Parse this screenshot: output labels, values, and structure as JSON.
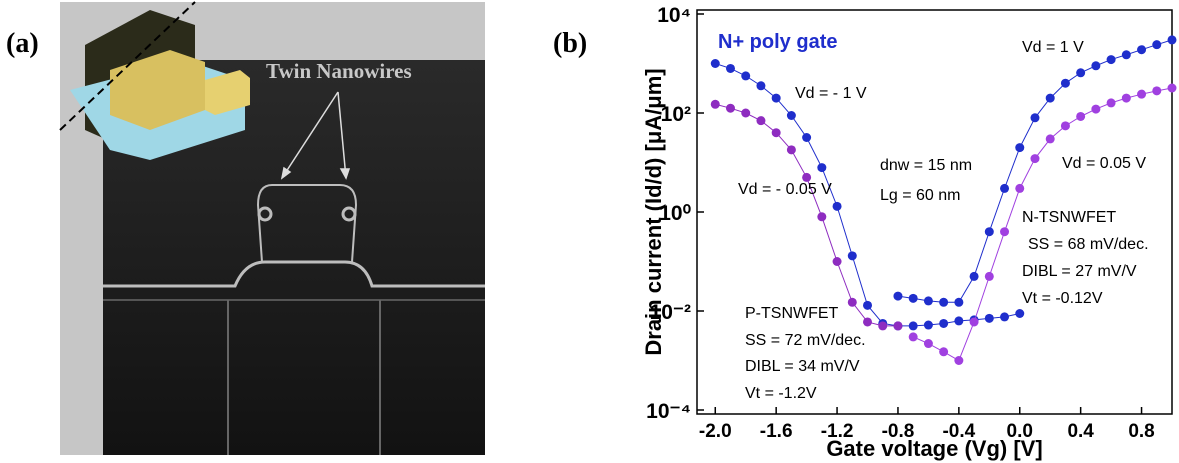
{
  "figure": {
    "panel_a_label": "(a)",
    "panel_b_label": "(b)",
    "sem_annotation": "Twin Nanowires"
  },
  "chart_data": {
    "type": "line",
    "yscale": "log",
    "xlabel": "Gate voltage (Vg) [V]",
    "ylabel": "Drain current (Id/d) [μA/μm]",
    "xlim": [
      -2.12,
      1.0
    ],
    "ylim": [
      0.0001,
      10000
    ],
    "xticks": [
      {
        "value": -2,
        "label": "-2.0"
      },
      -1.6,
      -1.2,
      -0.8,
      -0.4,
      {
        "value": 0,
        "label": "0.0"
      },
      0.4,
      0.8
    ],
    "yticks": [
      {
        "value": 0.0001,
        "label": "10⁻⁴"
      },
      {
        "value": 0.01,
        "label": "10⁻²"
      },
      {
        "value": 1,
        "label": "10⁰"
      },
      {
        "value": 100,
        "label": "10²"
      },
      {
        "value": 10000,
        "label": "10⁴"
      }
    ],
    "annotations": [
      "N+ poly gate",
      "dnw = 15 nm",
      "Lg = 60 nm",
      "N-TSNWFET",
      "SS = 68 mV/dec.",
      "DIBL = 27 mV/V",
      "Vt = -0.12V",
      "P-TSNWFET",
      "SS = 72 mV/dec.",
      "DIBL = 34 mV/V",
      "Vt = -1.2V"
    ],
    "series": [
      {
        "name": "Vd = - 1 V",
        "color": "#1f2ecc",
        "x": [
          -2.0,
          -1.9,
          -1.8,
          -1.7,
          -1.6,
          -1.5,
          -1.4,
          -1.3,
          -1.2,
          -1.1,
          -1.0,
          -0.9,
          -0.8,
          -0.7,
          -0.6,
          -0.5,
          -0.4,
          -0.3,
          -0.2,
          -0.1,
          0.0
        ],
        "values": [
          1000,
          794,
          562,
          355,
          200,
          89,
          32,
          7.9,
          1.3,
          0.13,
          0.013,
          0.0056,
          0.005,
          0.005,
          0.0052,
          0.0056,
          0.0063,
          0.0066,
          0.0071,
          0.0076,
          0.0089
        ]
      },
      {
        "name": "Vd = - 0.05 V",
        "color": "#8e2cc0",
        "x": [
          -2.0,
          -1.9,
          -1.8,
          -1.7,
          -1.6,
          -1.5,
          -1.4,
          -1.3,
          -1.2,
          -1.1,
          -1.0,
          -0.9,
          -0.8
        ],
        "values": [
          150,
          125,
          100,
          70,
          40,
          18,
          5,
          0.8,
          0.1,
          0.015,
          0.006,
          0.005,
          0.005
        ]
      },
      {
        "name": "Vd = 1 V",
        "color": "#1f2ecc",
        "x": [
          -0.8,
          -0.7,
          -0.6,
          -0.5,
          -0.4,
          -0.3,
          -0.2,
          -0.1,
          0.0,
          0.1,
          0.2,
          0.3,
          0.4,
          0.5,
          0.6,
          0.7,
          0.8,
          0.9,
          1.0
        ],
        "values": [
          0.02,
          0.018,
          0.016,
          0.015,
          0.015,
          0.05,
          0.4,
          3,
          20,
          80,
          200,
          400,
          650,
          900,
          1200,
          1500,
          1900,
          2400,
          3000
        ]
      },
      {
        "name": "Vd = 0.05 V",
        "color": "#a040e0",
        "x": [
          -0.7,
          -0.6,
          -0.5,
          -0.4,
          -0.3,
          -0.2,
          -0.1,
          0.0,
          0.1,
          0.2,
          0.3,
          0.4,
          0.5,
          0.6,
          0.7,
          0.8,
          0.9,
          1.0
        ],
        "values": [
          0.003,
          0.0022,
          0.0015,
          0.001,
          0.006,
          0.05,
          0.4,
          3,
          12,
          30,
          55,
          85,
          120,
          160,
          200,
          240,
          280,
          320
        ]
      }
    ]
  }
}
